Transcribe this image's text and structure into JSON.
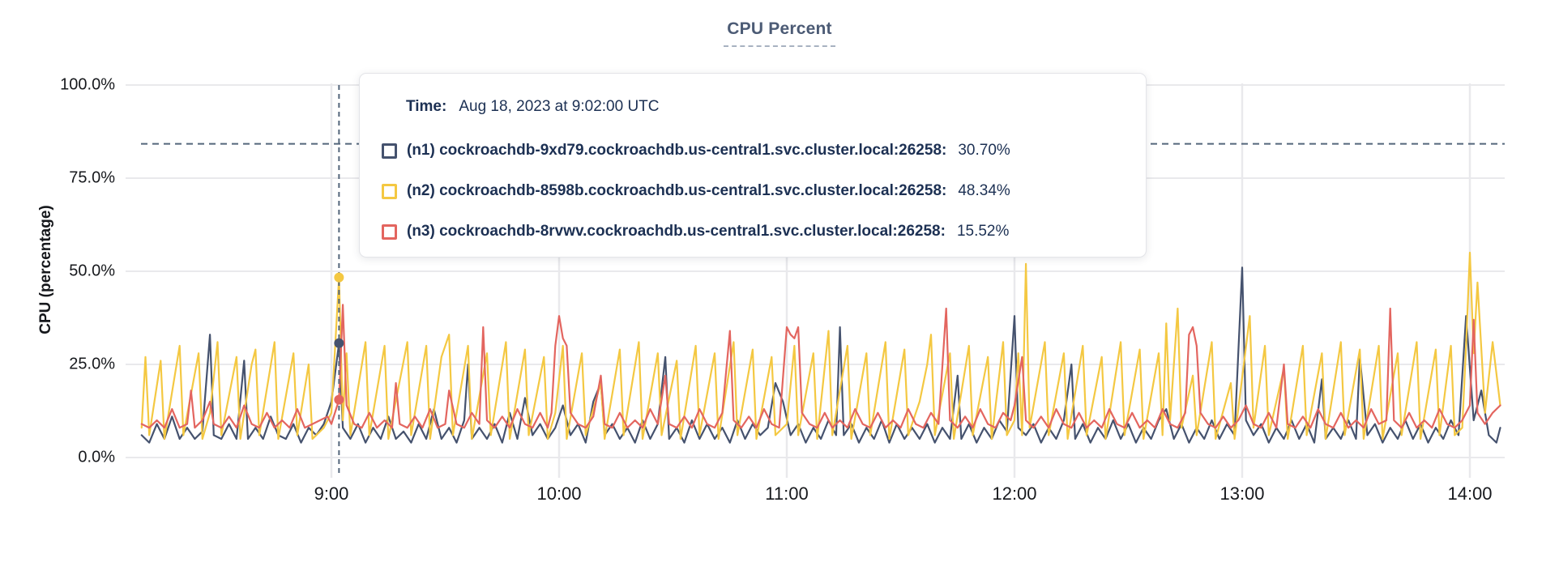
{
  "header": {
    "title": "CPU Percent"
  },
  "colors": {
    "n1": "#45526e",
    "n2": "#f4c842",
    "n3": "#e3655f",
    "grid": "#e9e9ec",
    "dashed": "#54667b",
    "axis_text": "#17191d",
    "tooltip_text": "#1c3053",
    "title": "#4c5b75"
  },
  "y_axis": {
    "title": "CPU (percentage)",
    "ticks": [
      "100.0%",
      "75.0%",
      "50.0%",
      "25.0%",
      "0.0%"
    ]
  },
  "x_axis": {
    "ticks": [
      "9:00",
      "10:00",
      "11:00",
      "12:00",
      "13:00",
      "14:00"
    ]
  },
  "tooltip": {
    "time_label": "Time:",
    "time_value": "Aug 18, 2023 at 9:02:00 UTC",
    "series": [
      {
        "name": "(n1) cockroachdb-9xd79.cockroachdb.us-central1.svc.cluster.local:26258:",
        "value": "30.70%"
      },
      {
        "name": "(n2) cockroachdb-8598b.cockroachdb.us-central1.svc.cluster.local:26258:",
        "value": "48.34%"
      },
      {
        "name": "(n3) cockroachdb-8rvwv.cockroachdb.us-central1.svc.cluster.local:26258:",
        "value": "15.52%"
      }
    ]
  },
  "chart_data": {
    "type": "line",
    "title": "CPU Percent",
    "ylabel": "CPU (percentage)",
    "ylim": [
      0,
      100
    ],
    "grid": true,
    "y_ticks_pct": [
      0,
      25,
      50,
      75,
      100
    ],
    "x_ticks_minutes": [
      60,
      120,
      180,
      240,
      300,
      360
    ],
    "x_tick_labels": [
      "9:00",
      "10:00",
      "11:00",
      "12:00",
      "13:00",
      "14:00"
    ],
    "x_unit": "minutes after 8:00 UTC, Aug 18 2023",
    "x_data_range": [
      10,
      368
    ],
    "threshold_pct": 84.2,
    "hover": {
      "minute": 62,
      "time_text": "Aug 18, 2023 at 9:02:00 UTC",
      "values": {
        "n1": 30.7,
        "n2": 48.34,
        "n3": 15.52
      }
    },
    "series": [
      {
        "id": "n1",
        "name": "(n1) cockroachdb-9xd79.cockroachdb.us-central1.svc.cluster.local:26258",
        "color": "#45526e",
        "points": [
          10,
          6,
          12,
          4,
          14,
          9,
          16,
          5,
          18,
          11,
          20,
          5,
          22,
          8,
          24,
          5,
          26,
          7,
          28,
          33,
          29,
          6,
          31,
          5,
          33,
          9,
          35,
          5,
          37,
          26,
          38,
          5,
          40,
          8,
          42,
          5,
          44,
          11,
          46,
          6,
          48,
          5,
          50,
          9,
          52,
          4,
          54,
          8,
          56,
          6,
          58,
          9,
          60,
          15,
          62,
          30.7,
          63,
          8,
          65,
          5,
          67,
          9,
          69,
          4,
          71,
          8,
          73,
          5,
          75,
          11,
          77,
          5,
          79,
          7,
          81,
          4,
          83,
          9,
          85,
          5,
          87,
          13,
          89,
          5,
          91,
          8,
          93,
          4,
          95,
          10,
          96,
          25,
          97,
          5,
          99,
          8,
          101,
          5,
          103,
          9,
          105,
          4,
          107,
          12,
          109,
          5,
          111,
          16,
          113,
          6,
          115,
          9,
          117,
          5,
          119,
          8,
          121,
          14,
          123,
          6,
          125,
          9,
          127,
          4,
          129,
          15,
          131,
          20,
          132,
          6,
          134,
          9,
          136,
          5,
          138,
          8,
          140,
          4,
          142,
          10,
          144,
          5,
          146,
          9,
          148,
          27,
          149,
          5,
          151,
          8,
          153,
          4,
          155,
          10,
          157,
          5,
          159,
          9,
          161,
          5,
          163,
          8,
          165,
          4,
          167,
          10,
          169,
          5,
          171,
          9,
          173,
          6,
          175,
          8,
          177,
          20,
          179,
          15,
          181,
          6,
          183,
          9,
          185,
          4,
          187,
          8,
          189,
          5,
          191,
          10,
          193,
          6,
          194,
          35,
          195,
          6,
          197,
          9,
          199,
          4,
          201,
          8,
          203,
          5,
          205,
          10,
          207,
          4,
          209,
          9,
          211,
          5,
          213,
          8,
          215,
          5,
          217,
          9,
          219,
          4,
          221,
          8,
          223,
          5,
          225,
          22,
          226,
          5,
          228,
          9,
          230,
          4,
          232,
          8,
          234,
          5,
          236,
          10,
          238,
          7,
          240,
          38,
          241,
          8,
          243,
          6,
          245,
          9,
          247,
          4,
          249,
          8,
          251,
          5,
          253,
          10,
          255,
          25,
          256,
          5,
          258,
          9,
          260,
          4,
          262,
          8,
          264,
          5,
          266,
          10,
          268,
          5,
          270,
          9,
          272,
          4,
          274,
          8,
          276,
          5,
          278,
          10,
          280,
          13,
          282,
          5,
          284,
          9,
          286,
          4,
          288,
          8,
          290,
          5,
          292,
          10,
          294,
          5,
          296,
          9,
          298,
          6,
          300,
          51,
          301,
          10,
          303,
          6,
          305,
          9,
          307,
          4,
          309,
          8,
          311,
          5,
          313,
          10,
          315,
          5,
          317,
          9,
          319,
          4,
          321,
          21,
          322,
          5,
          324,
          8,
          326,
          5,
          328,
          10,
          330,
          5,
          331,
          27,
          333,
          6,
          335,
          9,
          337,
          4,
          339,
          8,
          341,
          5,
          343,
          10,
          345,
          5,
          347,
          9,
          349,
          4,
          351,
          8,
          353,
          5,
          355,
          10,
          357,
          6,
          359,
          38,
          361,
          10,
          363,
          18,
          365,
          6,
          367,
          4,
          368,
          8
        ]
      },
      {
        "id": "n2",
        "name": "(n2) cockroachdb-8598b.cockroachdb.us-central1.svc.cluster.local:26258",
        "color": "#f4c842",
        "points": [
          10,
          8,
          11,
          27,
          12,
          6,
          15,
          26,
          16,
          5,
          20,
          30,
          21,
          6,
          25,
          28,
          26,
          5,
          28,
          12,
          30,
          31,
          31,
          6,
          35,
          27,
          36,
          5,
          39,
          25,
          40,
          29,
          41,
          6,
          45,
          31,
          46,
          5,
          50,
          28,
          51,
          6,
          54,
          25,
          55,
          5,
          58,
          8,
          60,
          12,
          62,
          48.3,
          63,
          10,
          64,
          28,
          65,
          6,
          69,
          31,
          70,
          6,
          74,
          30,
          75,
          5,
          80,
          31,
          81,
          6,
          85,
          30,
          86,
          5,
          89,
          27,
          91,
          33,
          92,
          6,
          96,
          30,
          97,
          5,
          101,
          28,
          102,
          6,
          106,
          31,
          107,
          5,
          111,
          29,
          112,
          6,
          116,
          27,
          117,
          5,
          119,
          12,
          121,
          30,
          122,
          5,
          126,
          28,
          127,
          6,
          131,
          20,
          132,
          5,
          136,
          29,
          137,
          6,
          141,
          31,
          142,
          5,
          146,
          28,
          147,
          6,
          151,
          26,
          152,
          5,
          156,
          30,
          157,
          6,
          161,
          28,
          162,
          5,
          166,
          31,
          167,
          6,
          171,
          29,
          172,
          5,
          176,
          27,
          177,
          6,
          180,
          9,
          182,
          30,
          183,
          6,
          187,
          28,
          188,
          5,
          191,
          34,
          192,
          6,
          196,
          30,
          197,
          5,
          201,
          28,
          202,
          6,
          206,
          31,
          207,
          5,
          211,
          29,
          212,
          6,
          215,
          15,
          217,
          25,
          218,
          33,
          219,
          6,
          223,
          28,
          224,
          5,
          228,
          30,
          229,
          6,
          233,
          27,
          234,
          5,
          237,
          31,
          238,
          6,
          240,
          10,
          241,
          28,
          242,
          6,
          243,
          52,
          244,
          8,
          248,
          31,
          249,
          6,
          253,
          28,
          254,
          5,
          258,
          30,
          259,
          6,
          263,
          27,
          264,
          5,
          268,
          31,
          269,
          6,
          273,
          29,
          274,
          5,
          278,
          28,
          279,
          6,
          280,
          36,
          281,
          10,
          283,
          40,
          284,
          8,
          287,
          22,
          288,
          6,
          292,
          31,
          293,
          5,
          297,
          20,
          298,
          5,
          302,
          38,
          303,
          8,
          306,
          30,
          307,
          6,
          311,
          24,
          312,
          5,
          316,
          30,
          317,
          6,
          321,
          28,
          322,
          5,
          326,
          31,
          327,
          6,
          331,
          29,
          332,
          5,
          336,
          30,
          337,
          5,
          341,
          28,
          342,
          6,
          346,
          31,
          347,
          5,
          351,
          29,
          352,
          6,
          355,
          30,
          356,
          6,
          358,
          8,
          359,
          30,
          360,
          55,
          361,
          28,
          362,
          47,
          364,
          12,
          366,
          31,
          368,
          14
        ]
      },
      {
        "id": "n3",
        "name": "(n3) cockroachdb-8rvwv.cockroachdb.us-central1.svc.cluster.local:26258",
        "color": "#e3655f",
        "points": [
          10,
          9,
          12,
          8,
          14,
          10,
          16,
          8,
          18,
          13,
          20,
          8,
          22,
          9,
          23,
          18,
          24,
          8,
          26,
          10,
          28,
          15,
          29,
          9,
          31,
          8,
          33,
          11,
          35,
          8,
          37,
          14,
          39,
          9,
          41,
          8,
          43,
          12,
          45,
          8,
          47,
          10,
          49,
          8,
          51,
          13,
          53,
          8,
          55,
          9,
          57,
          10,
          59,
          11,
          60,
          9,
          62,
          15.5,
          63,
          41,
          64,
          14,
          66,
          9,
          68,
          8,
          70,
          12,
          72,
          8,
          74,
          10,
          76,
          8,
          77,
          20,
          78,
          9,
          80,
          8,
          82,
          11,
          84,
          8,
          86,
          13,
          88,
          8,
          90,
          9,
          91,
          18,
          93,
          9,
          95,
          8,
          97,
          12,
          99,
          9,
          100,
          35,
          101,
          10,
          103,
          8,
          105,
          11,
          107,
          8,
          109,
          13,
          111,
          9,
          113,
          8,
          115,
          12,
          117,
          8,
          118,
          12,
          119,
          30,
          120,
          38,
          121,
          32,
          122,
          30,
          123,
          12,
          125,
          9,
          127,
          8,
          129,
          11,
          131,
          22,
          132,
          9,
          134,
          8,
          136,
          12,
          138,
          8,
          140,
          10,
          142,
          8,
          144,
          13,
          146,
          9,
          148,
          22,
          149,
          9,
          151,
          8,
          153,
          11,
          155,
          8,
          157,
          13,
          159,
          9,
          161,
          8,
          163,
          12,
          165,
          34,
          166,
          10,
          168,
          8,
          170,
          11,
          172,
          8,
          174,
          13,
          176,
          9,
          178,
          8,
          180,
          35,
          181,
          33,
          182,
          32,
          183,
          35,
          184,
          12,
          186,
          9,
          188,
          8,
          190,
          12,
          192,
          8,
          194,
          10,
          196,
          8,
          198,
          13,
          200,
          9,
          202,
          8,
          204,
          12,
          206,
          8,
          208,
          10,
          210,
          8,
          212,
          13,
          214,
          9,
          216,
          8,
          218,
          12,
          220,
          9,
          222,
          40,
          223,
          10,
          225,
          8,
          227,
          11,
          229,
          8,
          231,
          13,
          233,
          9,
          235,
          8,
          237,
          12,
          239,
          10,
          240,
          14,
          242,
          27,
          243,
          10,
          245,
          8,
          247,
          11,
          249,
          8,
          251,
          13,
          253,
          9,
          255,
          8,
          257,
          12,
          259,
          8,
          261,
          10,
          263,
          8,
          265,
          13,
          267,
          9,
          269,
          8,
          271,
          12,
          273,
          8,
          275,
          10,
          277,
          8,
          279,
          13,
          281,
          9,
          283,
          8,
          285,
          12,
          286,
          33,
          287,
          35,
          288,
          30,
          289,
          12,
          291,
          9,
          293,
          8,
          295,
          11,
          297,
          8,
          299,
          10,
          301,
          14,
          303,
          9,
          305,
          8,
          307,
          12,
          309,
          8,
          311,
          25,
          312,
          9,
          314,
          8,
          316,
          11,
          318,
          8,
          320,
          13,
          322,
          9,
          324,
          8,
          326,
          12,
          328,
          8,
          330,
          10,
          332,
          8,
          334,
          13,
          336,
          9,
          338,
          10,
          339,
          40,
          340,
          10,
          342,
          8,
          344,
          12,
          346,
          8,
          348,
          10,
          350,
          8,
          352,
          13,
          354,
          9,
          356,
          8,
          358,
          10,
          360,
          14,
          361,
          37,
          362,
          12,
          364,
          9,
          366,
          12,
          368,
          14
        ]
      }
    ]
  }
}
